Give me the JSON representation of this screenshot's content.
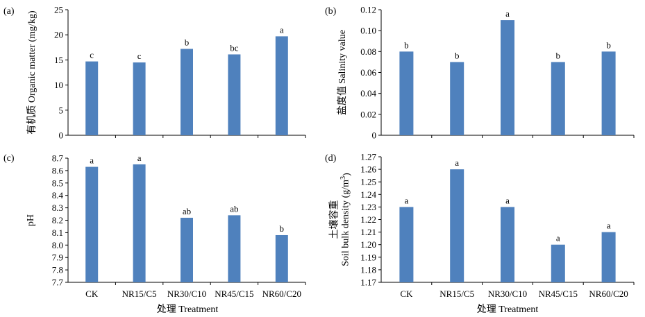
{
  "chart_data": [
    {
      "panel_label": "(a)",
      "type": "bar",
      "categories": [
        "CK",
        "NR15/C5",
        "NR30/C10",
        "NR45/C15",
        "NR60/C20"
      ],
      "values": [
        14.7,
        14.5,
        17.2,
        16.1,
        19.7
      ],
      "significance": [
        "c",
        "c",
        "b",
        "bc",
        "a"
      ],
      "ylabel": "有机质 Organic matter (mg/kg)",
      "xlabel": "",
      "ylim": [
        0,
        25
      ],
      "yticks": [
        0,
        5,
        10,
        15,
        20,
        25
      ],
      "ytick_labels": [
        "0",
        "5",
        "10",
        "15",
        "20",
        "25"
      ],
      "show_xticklabels": false,
      "color": "#4f81bd"
    },
    {
      "panel_label": "(b)",
      "type": "bar",
      "categories": [
        "CK",
        "NR15/C5",
        "NR30/C10",
        "NR45/C15",
        "NR60/C20"
      ],
      "values": [
        0.08,
        0.07,
        0.11,
        0.07,
        0.08
      ],
      "significance": [
        "b",
        "b",
        "a",
        "b",
        "b"
      ],
      "ylabel": "盐度值 Salinity value",
      "xlabel": "",
      "ylim": [
        0,
        0.12
      ],
      "yticks": [
        0,
        0.02,
        0.04,
        0.06,
        0.08,
        0.1,
        0.12
      ],
      "ytick_labels": [
        "0",
        "0.02",
        "0.04",
        "0.06",
        "0.08",
        "0.10",
        "0.12"
      ],
      "show_xticklabels": false,
      "color": "#4f81bd"
    },
    {
      "panel_label": "(c)",
      "type": "bar",
      "categories": [
        "CK",
        "NR15/C5",
        "NR30/C10",
        "NR45/C15",
        "NR60/C20"
      ],
      "values": [
        8.63,
        8.65,
        8.22,
        8.24,
        8.08
      ],
      "significance": [
        "a",
        "a",
        "ab",
        "ab",
        "b"
      ],
      "ylabel": "pH",
      "xlabel": "处理 Treatment",
      "ylim": [
        7.7,
        8.7
      ],
      "yticks": [
        7.7,
        7.8,
        7.9,
        8.0,
        8.1,
        8.2,
        8.3,
        8.4,
        8.5,
        8.6,
        8.7
      ],
      "ytick_labels": [
        "7.7",
        "7.8",
        "7.9",
        "8.0",
        "8.1",
        "8.2",
        "8.3",
        "8.4",
        "8.5",
        "8.6",
        "8.7"
      ],
      "show_xticklabels": true,
      "color": "#4f81bd"
    },
    {
      "panel_label": "(d)",
      "type": "bar",
      "categories": [
        "CK",
        "NR15/C5",
        "NR30/C10",
        "NR45/C15",
        "NR60/C20"
      ],
      "values": [
        1.23,
        1.26,
        1.23,
        1.2,
        1.21
      ],
      "significance": [
        "a",
        "a",
        "a",
        "a",
        "a"
      ],
      "ylabel_cn": "土壤容重",
      "ylabel_en": "Soil bulk density (g/m",
      "ylabel_sup": "3",
      "ylabel_end": ")",
      "xlabel": "处理 Treatment",
      "ylim": [
        1.17,
        1.27
      ],
      "yticks": [
        1.17,
        1.18,
        1.19,
        1.2,
        1.21,
        1.22,
        1.23,
        1.24,
        1.25,
        1.26,
        1.27
      ],
      "ytick_labels": [
        "1.17",
        "1.18",
        "1.19",
        "1.20",
        "1.21",
        "1.22",
        "1.23",
        "1.24",
        "1.25",
        "1.26",
        "1.27"
      ],
      "show_xticklabels": true,
      "color": "#4f81bd"
    }
  ]
}
